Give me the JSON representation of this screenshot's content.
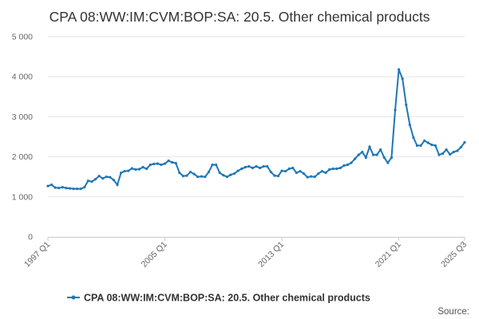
{
  "chart_data": {
    "type": "line",
    "title": "CPA 08:WW:IM:CVM:BOP:SA: 20.5. Other chemical products",
    "xlabel": "",
    "ylabel": "",
    "ylim": [
      0,
      5000
    ],
    "y_ticks": [
      0,
      1000,
      2000,
      3000,
      4000,
      5000
    ],
    "y_tick_labels": [
      "0",
      "1 000",
      "2 000",
      "3 000",
      "4 000",
      "5 000"
    ],
    "x_tick_labels": [
      "1997 Q1",
      "2005 Q1",
      "2013 Q1",
      "2021 Q1",
      "2025 Q3"
    ],
    "grid": "horizontal",
    "legend_position": "bottom",
    "colors": {
      "series": "#1f77b4",
      "grid": "#e6e6e6",
      "axis": "#cccccc"
    },
    "series": [
      {
        "name": "CPA 08:WW:IM:CVM:BOP:SA: 20.5. Other chemical products",
        "x": [
          "1997 Q1",
          "1997 Q2",
          "1997 Q3",
          "1997 Q4",
          "1998 Q1",
          "1998 Q2",
          "1998 Q3",
          "1998 Q4",
          "1999 Q1",
          "1999 Q2",
          "1999 Q3",
          "1999 Q4",
          "2000 Q1",
          "2000 Q2",
          "2000 Q3",
          "2000 Q4",
          "2001 Q1",
          "2001 Q2",
          "2001 Q3",
          "2001 Q4",
          "2002 Q1",
          "2002 Q2",
          "2002 Q3",
          "2002 Q4",
          "2003 Q1",
          "2003 Q2",
          "2003 Q3",
          "2003 Q4",
          "2004 Q1",
          "2004 Q2",
          "2004 Q3",
          "2004 Q4",
          "2005 Q1",
          "2005 Q2",
          "2005 Q3",
          "2005 Q4",
          "2006 Q1",
          "2006 Q2",
          "2006 Q3",
          "2006 Q4",
          "2007 Q1",
          "2007 Q2",
          "2007 Q3",
          "2007 Q4",
          "2008 Q1",
          "2008 Q2",
          "2008 Q3",
          "2008 Q4",
          "2009 Q1",
          "2009 Q2",
          "2009 Q3",
          "2009 Q4",
          "2010 Q1",
          "2010 Q2",
          "2010 Q3",
          "2010 Q4",
          "2011 Q1",
          "2011 Q2",
          "2011 Q3",
          "2011 Q4",
          "2012 Q1",
          "2012 Q2",
          "2012 Q3",
          "2012 Q4",
          "2013 Q1",
          "2013 Q2",
          "2013 Q3",
          "2013 Q4",
          "2014 Q1",
          "2014 Q2",
          "2014 Q3",
          "2014 Q4",
          "2015 Q1",
          "2015 Q2",
          "2015 Q3",
          "2015 Q4",
          "2016 Q1",
          "2016 Q2",
          "2016 Q3",
          "2016 Q4",
          "2017 Q1",
          "2017 Q2",
          "2017 Q3",
          "2017 Q4",
          "2018 Q1",
          "2018 Q2",
          "2018 Q3",
          "2018 Q4",
          "2019 Q1",
          "2019 Q2",
          "2019 Q3",
          "2019 Q4",
          "2020 Q1",
          "2020 Q2",
          "2020 Q3",
          "2020 Q4",
          "2021 Q1",
          "2021 Q2",
          "2021 Q3",
          "2021 Q4",
          "2022 Q1",
          "2022 Q2",
          "2022 Q3",
          "2022 Q4",
          "2023 Q1",
          "2023 Q2",
          "2023 Q3",
          "2023 Q4",
          "2024 Q1",
          "2024 Q2",
          "2024 Q3",
          "2024 Q4",
          "2025 Q1",
          "2025 Q2",
          "2025 Q3"
        ],
        "values": [
          1270,
          1300,
          1230,
          1220,
          1240,
          1220,
          1210,
          1200,
          1200,
          1200,
          1240,
          1400,
          1380,
          1440,
          1520,
          1460,
          1500,
          1490,
          1420,
          1300,
          1600,
          1640,
          1650,
          1710,
          1680,
          1690,
          1740,
          1700,
          1800,
          1820,
          1830,
          1800,
          1830,
          1900,
          1860,
          1840,
          1600,
          1520,
          1530,
          1620,
          1570,
          1500,
          1510,
          1500,
          1620,
          1800,
          1800,
          1600,
          1540,
          1500,
          1550,
          1580,
          1650,
          1700,
          1740,
          1760,
          1720,
          1760,
          1720,
          1760,
          1760,
          1620,
          1530,
          1520,
          1650,
          1640,
          1700,
          1720,
          1600,
          1640,
          1580,
          1490,
          1510,
          1500,
          1580,
          1640,
          1600,
          1680,
          1700,
          1700,
          1720,
          1780,
          1800,
          1850,
          1950,
          2050,
          2120,
          1980,
          2250,
          2050,
          2050,
          2180,
          1980,
          1850,
          1980,
          3170,
          4180,
          3950,
          3300,
          2800,
          2480,
          2280,
          2280,
          2400,
          2350,
          2300,
          2280,
          2050,
          2080,
          2180,
          2060,
          2120,
          2150,
          2240,
          2360
        ]
      }
    ],
    "source_label": "Source:"
  }
}
